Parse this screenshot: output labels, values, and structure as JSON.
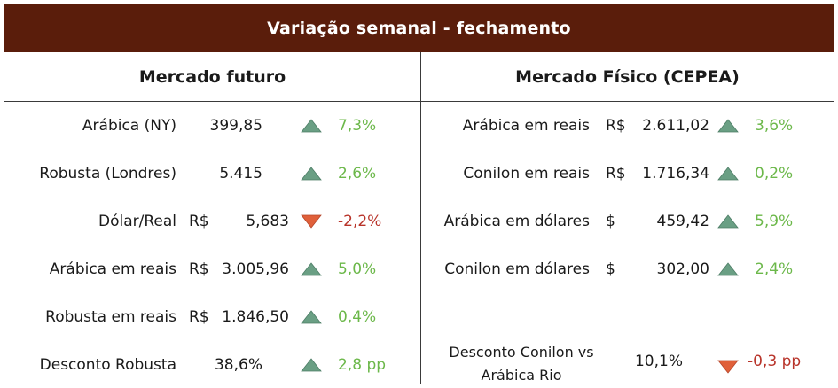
{
  "title": "Variação semanal - fechamento",
  "futuro": {
    "header": "Mercado futuro",
    "rows": [
      {
        "label": "Arábica (NY)",
        "currency": "",
        "value": "399,85",
        "dir": "up",
        "change": "7,3%"
      },
      {
        "label": "Robusta (Londres)",
        "currency": "",
        "value": "5.415",
        "dir": "up",
        "change": "2,6%"
      },
      {
        "label": "Dólar/Real",
        "currency": "R$",
        "value": "5,683",
        "dir": "down",
        "change": "-2,2%"
      },
      {
        "label": "Arábica em reais",
        "currency": "R$",
        "value": "3.005,96",
        "dir": "up",
        "change": "5,0%"
      },
      {
        "label": "Robusta em reais",
        "currency": "R$",
        "value": "1.846,50",
        "dir": "up",
        "change": "0,4%"
      },
      {
        "label": "Desconto Robusta",
        "currency": "",
        "value": "38,6%",
        "dir": "up",
        "change": "2,8 pp"
      }
    ]
  },
  "fisico": {
    "header": "Mercado Físico (CEPEA)",
    "rows": [
      {
        "label": "Arábica em reais",
        "currency": "R$",
        "value": "2.611,02",
        "dir": "up",
        "change": "3,6%"
      },
      {
        "label": "Conilon em reais",
        "currency": "R$",
        "value": "1.716,34",
        "dir": "up",
        "change": "0,2%"
      },
      {
        "label": "Arábica em dólares",
        "currency": "$",
        "value": "459,42",
        "dir": "up",
        "change": "5,9%"
      },
      {
        "label": "Conilon em dólares",
        "currency": "$",
        "value": "302,00",
        "dir": "up",
        "change": "2,4%"
      }
    ],
    "discount": {
      "label_line1": "Desconto Conilon vs",
      "label_line2": "Arábica Rio",
      "value": "10,1%",
      "dir": "down",
      "change": "-0,3 pp"
    }
  },
  "colors": {
    "header_bg": "#5a1d0b",
    "up_arrow": "#6a9f84",
    "down_arrow": "#e0603a",
    "up_text": "#6cb84a",
    "down_text": "#b8342a"
  }
}
